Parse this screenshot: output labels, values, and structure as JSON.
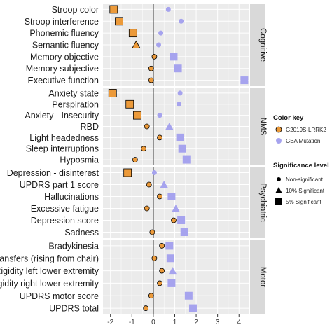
{
  "chart_data": {
    "type": "scatter",
    "x_ticks": [
      -2,
      -1,
      0,
      1,
      2,
      3,
      4
    ],
    "xlim": [
      -2.35,
      4.45
    ],
    "grid": true,
    "colors": {
      "G2019S": "#ec9a3a",
      "GBA": "#a6a3ee",
      "strip": "#d9d9d9",
      "panel": "#ebebeb",
      "zero_line": "#000000"
    },
    "legend": {
      "color_title": "Color key",
      "color_items": [
        {
          "key": "G2019S",
          "label": "G2019S-LRRK2"
        },
        {
          "key": "GBA",
          "label": "GBA Mutation"
        }
      ],
      "sig_title": "Significance level",
      "sig_items": [
        {
          "shape": "circle",
          "label": "Non-significant"
        },
        {
          "shape": "triangle",
          "label": "10% Significant"
        },
        {
          "shape": "square",
          "label": "5% Significant"
        }
      ]
    },
    "panels": [
      {
        "name": "Cognitive",
        "rows": [
          {
            "label": "Stroop color",
            "G2019S": {
              "x": -1.85,
              "sig": "square"
            },
            "GBA": {
              "x": 0.7,
              "sig": "circle"
            }
          },
          {
            "label": "Stroop interference",
            "G2019S": {
              "x": -1.6,
              "sig": "square"
            },
            "GBA": {
              "x": 1.3,
              "sig": "circle"
            }
          },
          {
            "label": "Phonemic fluency",
            "G2019S": {
              "x": -0.95,
              "sig": "square"
            },
            "GBA": {
              "x": 0.35,
              "sig": "circle"
            }
          },
          {
            "label": "Semantic fluency",
            "G2019S": {
              "x": -0.8,
              "sig": "triangle"
            },
            "GBA": {
              "x": 0.25,
              "sig": "circle"
            }
          },
          {
            "label": "Memory objective",
            "G2019S": {
              "x": 0.05,
              "sig": "circle"
            },
            "GBA": {
              "x": 0.95,
              "sig": "square"
            }
          },
          {
            "label": "Memory subjective",
            "G2019S": {
              "x": -0.1,
              "sig": "circle"
            },
            "GBA": {
              "x": 1.15,
              "sig": "square"
            }
          },
          {
            "label": "Executive function",
            "G2019S": {
              "x": -0.1,
              "sig": "circle"
            },
            "GBA": {
              "x": 4.25,
              "sig": "square"
            }
          }
        ]
      },
      {
        "name": "NMS",
        "rows": [
          {
            "label": "Anxiety state",
            "G2019S": {
              "x": -1.9,
              "sig": "square"
            },
            "GBA": {
              "x": 1.25,
              "sig": "circle"
            }
          },
          {
            "label": "Perspiration",
            "G2019S": {
              "x": -1.1,
              "sig": "square"
            },
            "GBA": {
              "x": 1.2,
              "sig": "circle"
            }
          },
          {
            "label": "Anxiety - Insecurity",
            "G2019S": {
              "x": -0.75,
              "sig": "square"
            },
            "GBA": {
              "x": 0.3,
              "sig": "circle"
            }
          },
          {
            "label": "RBD",
            "G2019S": {
              "x": -0.3,
              "sig": "circle"
            },
            "GBA": {
              "x": 0.75,
              "sig": "triangle"
            }
          },
          {
            "label": "Light headedness",
            "G2019S": {
              "x": 0.3,
              "sig": "circle"
            },
            "GBA": {
              "x": 1.25,
              "sig": "square"
            }
          },
          {
            "label": "Sleep interruptions",
            "G2019S": {
              "x": -0.45,
              "sig": "circle"
            },
            "GBA": {
              "x": 1.35,
              "sig": "square"
            }
          },
          {
            "label": "Hyposmia",
            "G2019S": {
              "x": -0.85,
              "sig": "circle"
            },
            "GBA": {
              "x": 1.55,
              "sig": "square"
            }
          }
        ]
      },
      {
        "name": "Psychiatric",
        "rows": [
          {
            "label": "Depression - disinterest",
            "G2019S": {
              "x": -1.2,
              "sig": "square"
            },
            "GBA": {
              "x": 0.05,
              "sig": "circle"
            }
          },
          {
            "label": "UPDRS part 1 score",
            "G2019S": {
              "x": -0.2,
              "sig": "circle"
            },
            "GBA": {
              "x": 0.5,
              "sig": "triangle"
            }
          },
          {
            "label": "Hallucinations",
            "G2019S": {
              "x": 0.3,
              "sig": "circle"
            },
            "GBA": {
              "x": 0.85,
              "sig": "square"
            }
          },
          {
            "label": "Excessive fatigue",
            "G2019S": {
              "x": -0.3,
              "sig": "circle"
            },
            "GBA": {
              "x": 1.05,
              "sig": "triangle"
            }
          },
          {
            "label": "Depression score",
            "G2019S": {
              "x": 0.95,
              "sig": "circle"
            },
            "GBA": {
              "x": 1.3,
              "sig": "square"
            }
          },
          {
            "label": "Sadness",
            "G2019S": {
              "x": -0.05,
              "sig": "circle"
            },
            "GBA": {
              "x": 1.45,
              "sig": "square"
            }
          }
        ]
      },
      {
        "name": "Motor",
        "rows": [
          {
            "label": "Bradykinesia",
            "G2019S": {
              "x": 0.4,
              "sig": "circle"
            },
            "GBA": {
              "x": 0.75,
              "sig": "square"
            }
          },
          {
            "label": "Transfers (rising from chair)",
            "G2019S": {
              "x": 0.05,
              "sig": "circle"
            },
            "GBA": {
              "x": 0.8,
              "sig": "square"
            }
          },
          {
            "label": "Rigidity left lower extremity",
            "G2019S": {
              "x": 0.4,
              "sig": "circle"
            },
            "GBA": {
              "x": 0.9,
              "sig": "triangle"
            }
          },
          {
            "label": "Rigidity right lower extremity",
            "G2019S": {
              "x": 0.3,
              "sig": "circle"
            },
            "GBA": {
              "x": 0.85,
              "sig": "square"
            }
          },
          {
            "label": "UPDRS motor score",
            "G2019S": {
              "x": -0.1,
              "sig": "circle"
            },
            "GBA": {
              "x": 1.65,
              "sig": "square"
            }
          },
          {
            "label": "UPDRS total",
            "G2019S": {
              "x": -0.35,
              "sig": "circle"
            },
            "GBA": {
              "x": 1.85,
              "sig": "square"
            }
          }
        ]
      }
    ]
  }
}
